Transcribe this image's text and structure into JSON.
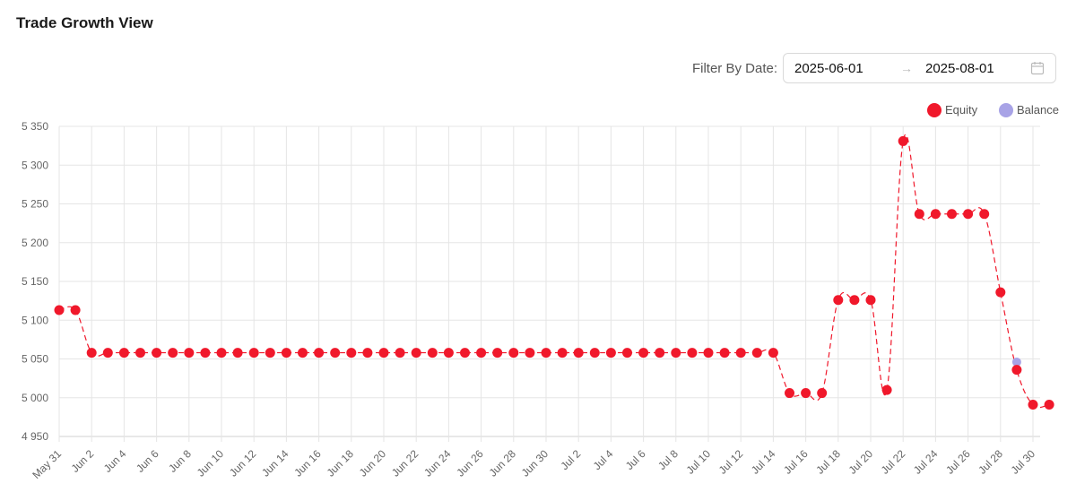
{
  "header": {
    "title": "Trade Growth View"
  },
  "filter": {
    "label": "Filter By Date:",
    "start": "2025-06-01",
    "end": "2025-08-01",
    "separator_icon": "arrow-right-icon",
    "calendar_icon": "calendar-icon"
  },
  "chart_data": {
    "type": "line",
    "legend": {
      "position": "top-right",
      "entries": [
        "Equity",
        "Balance"
      ]
    },
    "x_labels": [
      "May 31",
      "Jun 2",
      "Jun 4",
      "Jun 6",
      "Jun 8",
      "Jun 10",
      "Jun 12",
      "Jun 14",
      "Jun 16",
      "Jun 18",
      "Jun 20",
      "Jun 22",
      "Jun 24",
      "Jun 26",
      "Jun 28",
      "Jun 30",
      "Jul 2",
      "Jul 4",
      "Jul 6",
      "Jul 8",
      "Jul 10",
      "Jul 12",
      "Jul 14",
      "Jul 16",
      "Jul 18",
      "Jul 20",
      "Jul 22",
      "Jul 24",
      "Jul 26",
      "Jul 28",
      "Jul 30"
    ],
    "x_range": [
      "2025-05-31",
      "2025-07-31"
    ],
    "y_ticks": [
      "5 350",
      "5 300",
      "5 250",
      "5 200",
      "5 150",
      "5 100",
      "5 050",
      "5 000",
      "4 950"
    ],
    "ylim": [
      4950,
      5350
    ],
    "grid": true,
    "series": [
      {
        "name": "Equity",
        "color": "#f0182b",
        "line_style": "dashed",
        "points": [
          [
            "2025-05-31",
            5113
          ],
          [
            "2025-06-01",
            5113
          ],
          [
            "2025-06-02",
            5058
          ],
          [
            "2025-06-03",
            5058
          ],
          [
            "2025-06-04",
            5058
          ],
          [
            "2025-06-05",
            5058
          ],
          [
            "2025-06-06",
            5058
          ],
          [
            "2025-06-07",
            5058
          ],
          [
            "2025-06-08",
            5058
          ],
          [
            "2025-06-09",
            5058
          ],
          [
            "2025-06-10",
            5058
          ],
          [
            "2025-06-11",
            5058
          ],
          [
            "2025-06-12",
            5058
          ],
          [
            "2025-06-13",
            5058
          ],
          [
            "2025-06-14",
            5058
          ],
          [
            "2025-06-15",
            5058
          ],
          [
            "2025-06-16",
            5058
          ],
          [
            "2025-06-17",
            5058
          ],
          [
            "2025-06-18",
            5058
          ],
          [
            "2025-06-19",
            5058
          ],
          [
            "2025-06-20",
            5058
          ],
          [
            "2025-06-21",
            5058
          ],
          [
            "2025-06-22",
            5058
          ],
          [
            "2025-06-23",
            5058
          ],
          [
            "2025-06-24",
            5058
          ],
          [
            "2025-06-25",
            5058
          ],
          [
            "2025-06-26",
            5058
          ],
          [
            "2025-06-27",
            5058
          ],
          [
            "2025-06-28",
            5058
          ],
          [
            "2025-06-29",
            5058
          ],
          [
            "2025-06-30",
            5058
          ],
          [
            "2025-07-01",
            5058
          ],
          [
            "2025-07-02",
            5058
          ],
          [
            "2025-07-03",
            5058
          ],
          [
            "2025-07-04",
            5058
          ],
          [
            "2025-07-05",
            5058
          ],
          [
            "2025-07-06",
            5058
          ],
          [
            "2025-07-07",
            5058
          ],
          [
            "2025-07-08",
            5058
          ],
          [
            "2025-07-09",
            5058
          ],
          [
            "2025-07-10",
            5058
          ],
          [
            "2025-07-11",
            5058
          ],
          [
            "2025-07-12",
            5058
          ],
          [
            "2025-07-13",
            5058
          ],
          [
            "2025-07-14",
            5058
          ],
          [
            "2025-07-15",
            5006
          ],
          [
            "2025-07-16",
            5006
          ],
          [
            "2025-07-17",
            5006
          ],
          [
            "2025-07-18",
            5126
          ],
          [
            "2025-07-19",
            5126
          ],
          [
            "2025-07-20",
            5126
          ],
          [
            "2025-07-21",
            5010
          ],
          [
            "2025-07-22",
            5331
          ],
          [
            "2025-07-23",
            5237
          ],
          [
            "2025-07-24",
            5237
          ],
          [
            "2025-07-25",
            5237
          ],
          [
            "2025-07-26",
            5237
          ],
          [
            "2025-07-27",
            5237
          ],
          [
            "2025-07-28",
            5136
          ],
          [
            "2025-07-29",
            5036
          ],
          [
            "2025-07-30",
            4991
          ],
          [
            "2025-07-31",
            4991
          ]
        ]
      },
      {
        "name": "Balance",
        "color": "#a8a3e6",
        "line_style": "solid",
        "points": [
          [
            "2025-07-29",
            5046
          ]
        ]
      }
    ]
  }
}
